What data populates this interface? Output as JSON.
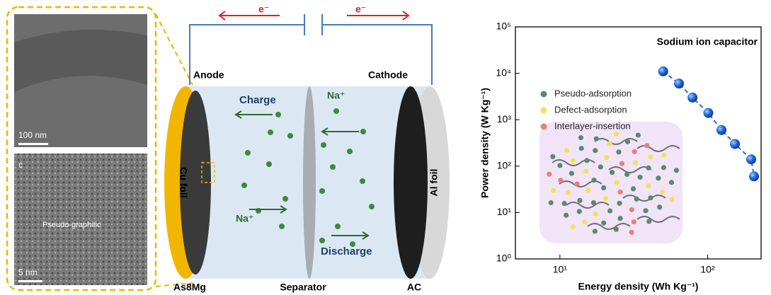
{
  "figure": {
    "tem": {
      "scale_top": "100 nm",
      "panel_letter": "c",
      "phase_label": "Pseudo-graphitic",
      "scale_bottom": "5 nm"
    },
    "schematic": {
      "anode": "Anode",
      "cathode": "Cathode",
      "electron_left": "e⁻",
      "electron_right": "e⁻",
      "charge": "Charge",
      "discharge": "Discharge",
      "ion_top": "Na⁺",
      "ion_bottom": "Na⁺",
      "cu_foil": "Cu foil",
      "al_foil": "Al foil",
      "anode_material": "As8Mg",
      "separator": "Separator",
      "cathode_material": "AC"
    },
    "inset_legend": [
      {
        "label": "Pseudo-adsorption",
        "color": "#5a8a6e"
      },
      {
        "label": "Defect-adsorption",
        "color": "#f0e35a"
      },
      {
        "label": "Interlayer-insertion",
        "color": "#e87f7f"
      }
    ]
  },
  "chart_data": {
    "type": "scatter-line",
    "title": "Sodium ion capacitor",
    "x_label": "Energy density (Wh Kg⁻¹)",
    "y_label": "Power density (W Kg⁻¹)",
    "x_log": true,
    "y_log": true,
    "xlim": [
      5,
      230
    ],
    "ylim": [
      1,
      100000
    ],
    "xticks": [
      {
        "value": 10,
        "label": "10¹"
      },
      {
        "value": 100,
        "label": "10²"
      }
    ],
    "yticks": [
      {
        "value": 1,
        "label": "10⁰"
      },
      {
        "value": 10,
        "label": "10¹"
      },
      {
        "value": 100,
        "label": "10²"
      },
      {
        "value": 1000,
        "label": "10³"
      },
      {
        "value": 10000,
        "label": "10⁴"
      },
      {
        "value": 100000,
        "label": "10⁵"
      }
    ],
    "series": [
      {
        "color": "#1f5fd6",
        "x": [
          50,
          64,
          79,
          101,
          124,
          153,
          197,
          206
        ],
        "values": [
          11000,
          6000,
          3000,
          1400,
          600,
          300,
          140,
          60
        ]
      }
    ]
  }
}
